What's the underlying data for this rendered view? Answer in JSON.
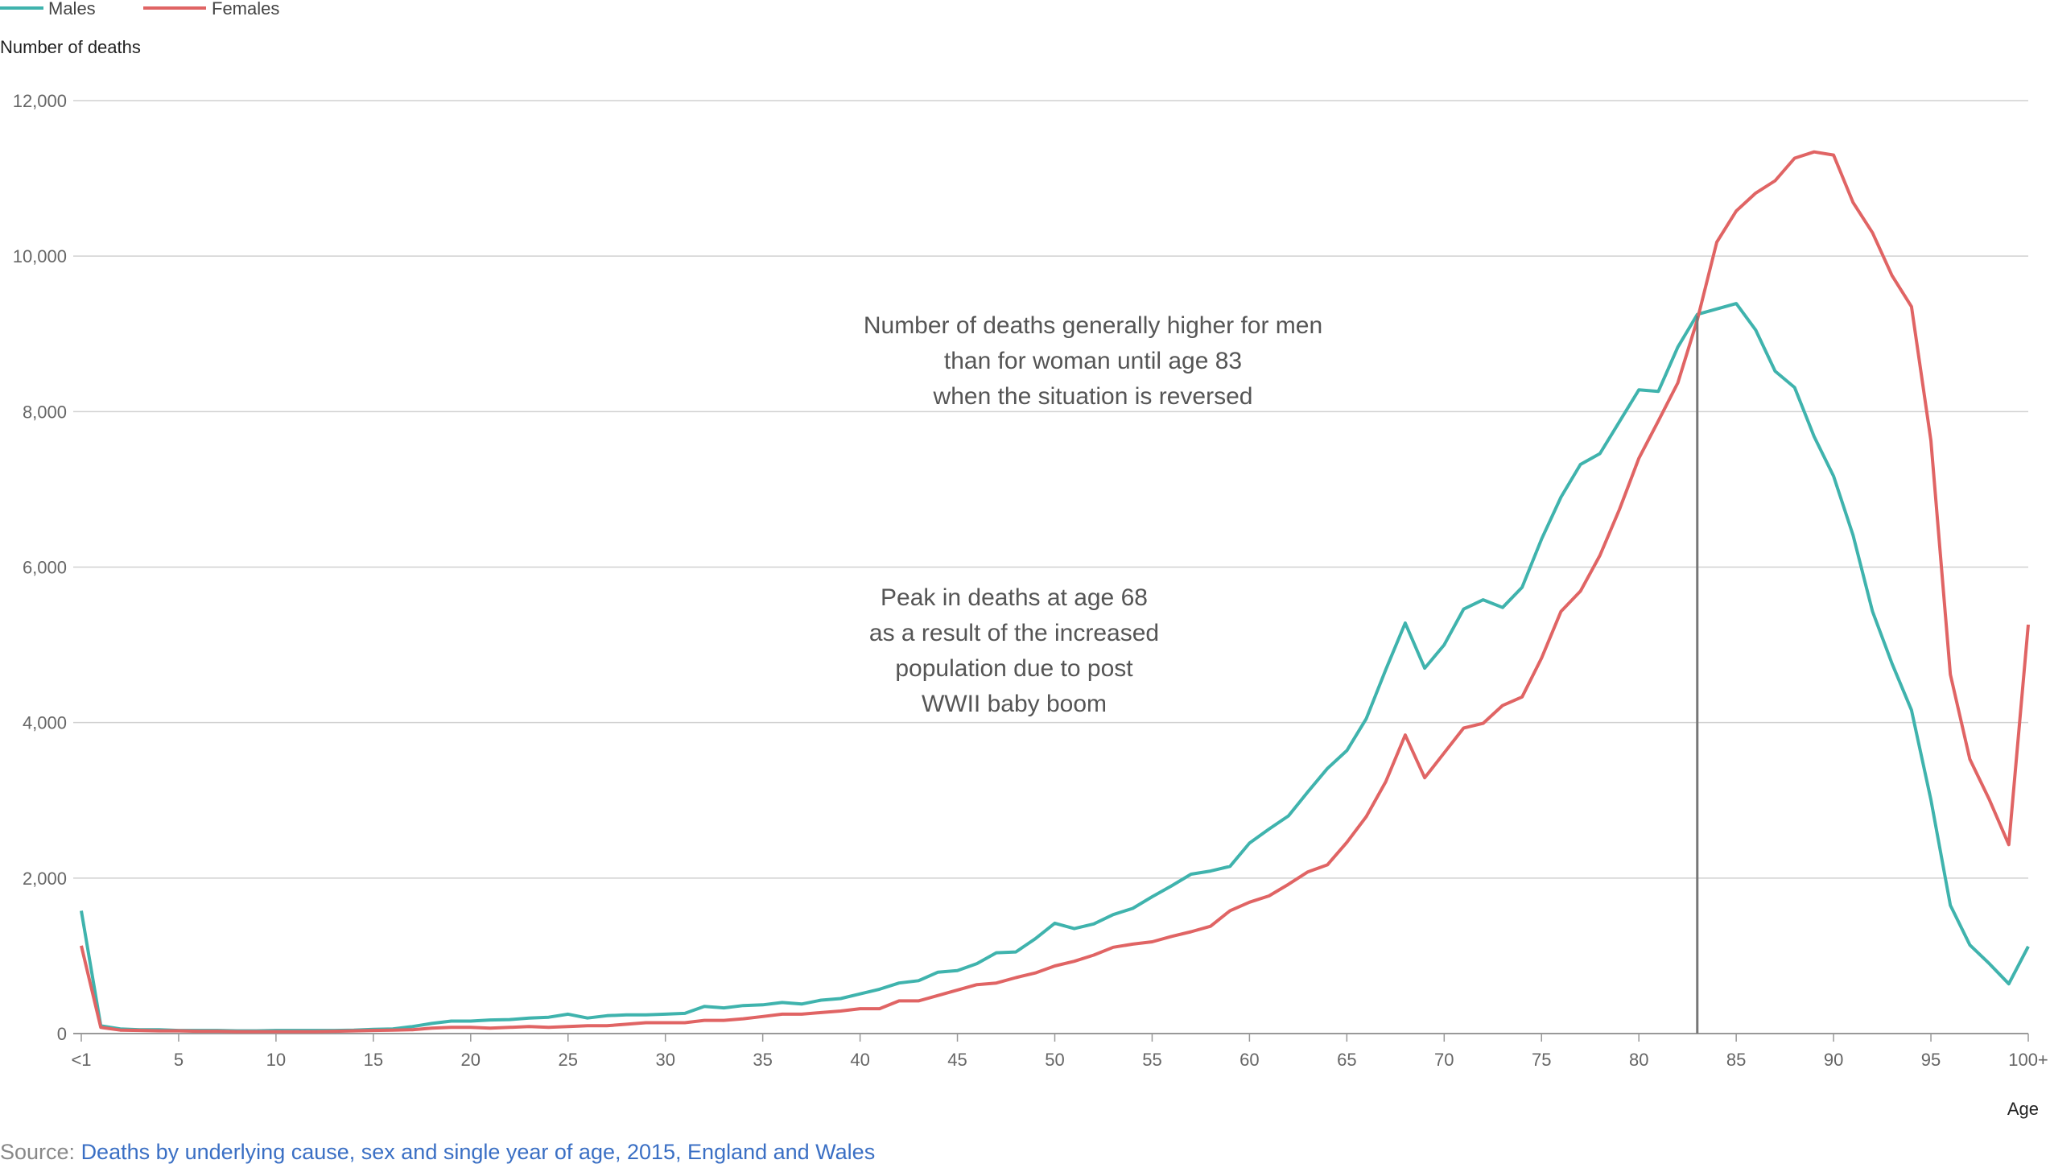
{
  "chart_data": {
    "type": "line",
    "title": "",
    "xlabel": "Age",
    "ylabel": "Number of deaths",
    "ylim": [
      0,
      12000
    ],
    "y_ticks": [
      "0",
      "2,000",
      "4,000",
      "6,000",
      "8,000",
      "10,000",
      "12,000"
    ],
    "y_tick_values": [
      0,
      2000,
      4000,
      6000,
      8000,
      10000,
      12000
    ],
    "x_ticks": [
      "<1",
      "5",
      "10",
      "15",
      "20",
      "25",
      "30",
      "35",
      "40",
      "45",
      "50",
      "55",
      "60",
      "65",
      "70",
      "75",
      "80",
      "85",
      "90",
      "95",
      "100+"
    ],
    "x_tick_values": [
      0,
      5,
      10,
      15,
      20,
      25,
      30,
      35,
      40,
      45,
      50,
      55,
      60,
      65,
      70,
      75,
      80,
      85,
      90,
      95,
      100
    ],
    "grid": "horizontal",
    "legend_position": "top-left",
    "x": [
      0,
      1,
      2,
      3,
      4,
      5,
      6,
      7,
      8,
      9,
      10,
      11,
      12,
      13,
      14,
      15,
      16,
      17,
      18,
      19,
      20,
      21,
      22,
      23,
      24,
      25,
      26,
      27,
      28,
      29,
      30,
      31,
      32,
      33,
      34,
      35,
      36,
      37,
      38,
      39,
      40,
      41,
      42,
      43,
      44,
      45,
      46,
      47,
      48,
      49,
      50,
      51,
      52,
      53,
      54,
      55,
      56,
      57,
      58,
      59,
      60,
      61,
      62,
      63,
      64,
      65,
      66,
      67,
      68,
      69,
      70,
      71,
      72,
      73,
      74,
      75,
      76,
      77,
      78,
      79,
      80,
      81,
      82,
      83,
      84,
      85,
      86,
      87,
      88,
      89,
      90,
      91,
      92,
      93,
      94,
      95,
      96,
      97,
      98,
      99,
      100
    ],
    "series": [
      {
        "name": "Males",
        "color": "#3fb3ad",
        "values": [
          1580,
          100,
          60,
          50,
          50,
          40,
          40,
          40,
          35,
          35,
          40,
          40,
          40,
          40,
          45,
          55,
          60,
          90,
          130,
          160,
          160,
          175,
          180,
          200,
          210,
          250,
          200,
          230,
          240,
          240,
          250,
          260,
          350,
          330,
          360,
          370,
          400,
          380,
          430,
          450,
          510,
          570,
          650,
          680,
          790,
          810,
          900,
          1040,
          1050,
          1220,
          1420,
          1350,
          1410,
          1530,
          1610,
          1760,
          1900,
          2050,
          2090,
          2150,
          2450,
          2630,
          2800,
          3110,
          3410,
          3640,
          4050,
          4680,
          5280,
          4700,
          5000,
          5460,
          5580,
          5480,
          5740,
          6360,
          6900,
          7320,
          7460,
          7870,
          8280,
          8260,
          8830,
          9250,
          9320,
          9390,
          9050,
          8520,
          8310,
          7680,
          7170,
          6410,
          5430,
          4760,
          4160,
          3010,
          1650,
          1140,
          900,
          640,
          1120
        ]
      },
      {
        "name": "Females",
        "color": "#e06464",
        "values": [
          1130,
          80,
          45,
          40,
          35,
          35,
          30,
          30,
          25,
          25,
          25,
          25,
          25,
          30,
          35,
          40,
          45,
          50,
          70,
          80,
          80,
          70,
          80,
          90,
          80,
          90,
          100,
          100,
          120,
          140,
          140,
          140,
          170,
          170,
          190,
          220,
          250,
          250,
          270,
          290,
          320,
          320,
          420,
          420,
          490,
          560,
          630,
          650,
          720,
          780,
          870,
          930,
          1010,
          1110,
          1150,
          1180,
          1250,
          1310,
          1380,
          1580,
          1690,
          1770,
          1920,
          2080,
          2170,
          2460,
          2790,
          3240,
          3840,
          3290,
          3610,
          3930,
          3990,
          4220,
          4330,
          4830,
          5430,
          5690,
          6150,
          6740,
          7400,
          7880,
          8370,
          9180,
          10180,
          10580,
          10810,
          10970,
          11260,
          11340,
          11300,
          10690,
          10300,
          9750,
          9350,
          7630,
          4620,
          3530,
          3010,
          2430,
          5260
        ]
      }
    ]
  },
  "legend": {
    "males_label": "Males",
    "females_label": "Females"
  },
  "annotations": {
    "reference_age": 83,
    "reference_color": "#777777",
    "crossover_lines": [
      "Number of deaths generally higher for men",
      "than for woman until age 83",
      "when the situation is reversed"
    ],
    "peak_lines": [
      "Peak in deaths at age 68",
      "as a result of the increased",
      "population due to post",
      "WWII baby boom"
    ]
  },
  "source": {
    "prefix": "Source: ",
    "link_text": "Deaths by underlying cause, sex and single year of age, 2015, England and Wales",
    "link_color": "#3a6fc4"
  }
}
